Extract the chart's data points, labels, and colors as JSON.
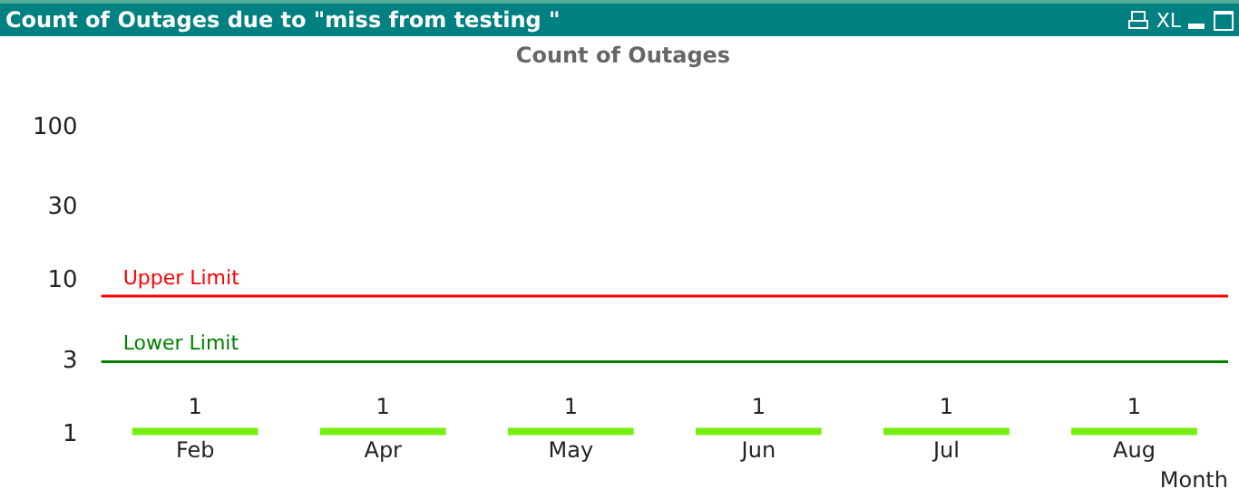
{
  "chart_data": {
    "type": "bar",
    "title": "Count of Outages due to \"miss from testing \"",
    "subtitle": "Count of Outages",
    "xlabel": "Month",
    "annotations": [
      "XL"
    ],
    "categories": [
      "Feb",
      "Apr",
      "May",
      "Jun",
      "Jul",
      "Aug"
    ],
    "values": [
      1,
      1,
      1,
      1,
      1,
      1
    ],
    "color": "#77ee11",
    "data_labels": true,
    "log": true,
    "ylim": [
      1,
      100
    ],
    "yticks": [
      1,
      3,
      10,
      30,
      100
    ],
    "grid": false,
    "legend": false,
    "ref_lines": [
      {
        "axis": "y",
        "value": 8,
        "label": "Upper Limit",
        "color": "#ff0000"
      },
      {
        "axis": "y",
        "value": 3,
        "label": "Lower Limit",
        "color": "#008000"
      }
    ]
  }
}
